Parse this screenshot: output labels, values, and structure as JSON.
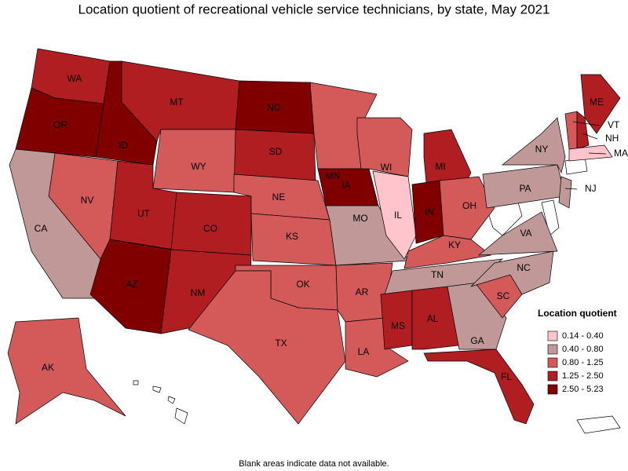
{
  "title": "Location quotient of recreational vehicle service technicians, by state, May 2021",
  "legend": {
    "title": "Location quotient",
    "items": [
      {
        "label": "0.14 - 0.40",
        "color": "#ffc4cc"
      },
      {
        "label": "0.40 - 0.80",
        "color": "#c09898"
      },
      {
        "label": "0.80 - 1.25",
        "color": "#d45a5a"
      },
      {
        "label": "1.25 - 2.50",
        "color": "#b01e22"
      },
      {
        "label": "2.50 - 5.23",
        "color": "#800000"
      }
    ]
  },
  "states": [
    {
      "label": "WA",
      "color": "#b01e22"
    },
    {
      "label": "OR",
      "color": "#800000"
    },
    {
      "label": "ID",
      "color": "#800000"
    },
    {
      "label": "MT",
      "color": "#b01e22"
    },
    {
      "label": "ND",
      "color": "#800000"
    },
    {
      "label": "SD",
      "color": "#b01e22"
    },
    {
      "label": "WY",
      "color": "#d45a5a"
    },
    {
      "label": "NV",
      "color": "#d45a5a"
    },
    {
      "label": "CA",
      "color": "#c09898"
    },
    {
      "label": "UT",
      "color": "#b01e22"
    },
    {
      "label": "CO",
      "color": "#b01e22"
    },
    {
      "label": "AZ",
      "color": "#800000"
    },
    {
      "label": "NM",
      "color": "#b01e22"
    },
    {
      "label": "NE",
      "color": "#d45a5a"
    },
    {
      "label": "KS",
      "color": "#d45a5a"
    },
    {
      "label": "OK",
      "color": "#d45a5a"
    },
    {
      "label": "TX",
      "color": "#d45a5a"
    },
    {
      "label": "MN",
      "color": "#d45a5a"
    },
    {
      "label": "IA",
      "color": "#800000"
    },
    {
      "label": "MO",
      "color": "#c09898"
    },
    {
      "label": "AR",
      "color": "#d45a5a"
    },
    {
      "label": "LA",
      "color": "#d45a5a"
    },
    {
      "label": "WI",
      "color": "#d45a5a"
    },
    {
      "label": "IL",
      "color": "#ffc4cc"
    },
    {
      "label": "MI",
      "color": "#b01e22"
    },
    {
      "label": "IN",
      "color": "#800000"
    },
    {
      "label": "OH",
      "color": "#d45a5a"
    },
    {
      "label": "KY",
      "color": "#d45a5a"
    },
    {
      "label": "TN",
      "color": "#c09898"
    },
    {
      "label": "MS",
      "color": "#b01e22"
    },
    {
      "label": "AL",
      "color": "#b01e22"
    },
    {
      "label": "GA",
      "color": "#c09898"
    },
    {
      "label": "FL",
      "color": "#b01e22"
    },
    {
      "label": "SC",
      "color": "#d45a5a"
    },
    {
      "label": "NC",
      "color": "#c09898"
    },
    {
      "label": "VA",
      "color": "#c09898"
    },
    {
      "label": "PA",
      "color": "#c09898"
    },
    {
      "label": "NY",
      "color": "#c09898"
    },
    {
      "label": "ME",
      "color": "#b01e22"
    },
    {
      "label": "VT",
      "color": "#d45a5a"
    },
    {
      "label": "NH",
      "color": "#b01e22"
    },
    {
      "label": "MA",
      "color": "#ffc4cc"
    },
    {
      "label": "NJ",
      "color": "#c09898"
    },
    {
      "label": "AK",
      "color": "#d45a5a"
    }
  ],
  "footnote": "Blank areas indicate data not available."
}
